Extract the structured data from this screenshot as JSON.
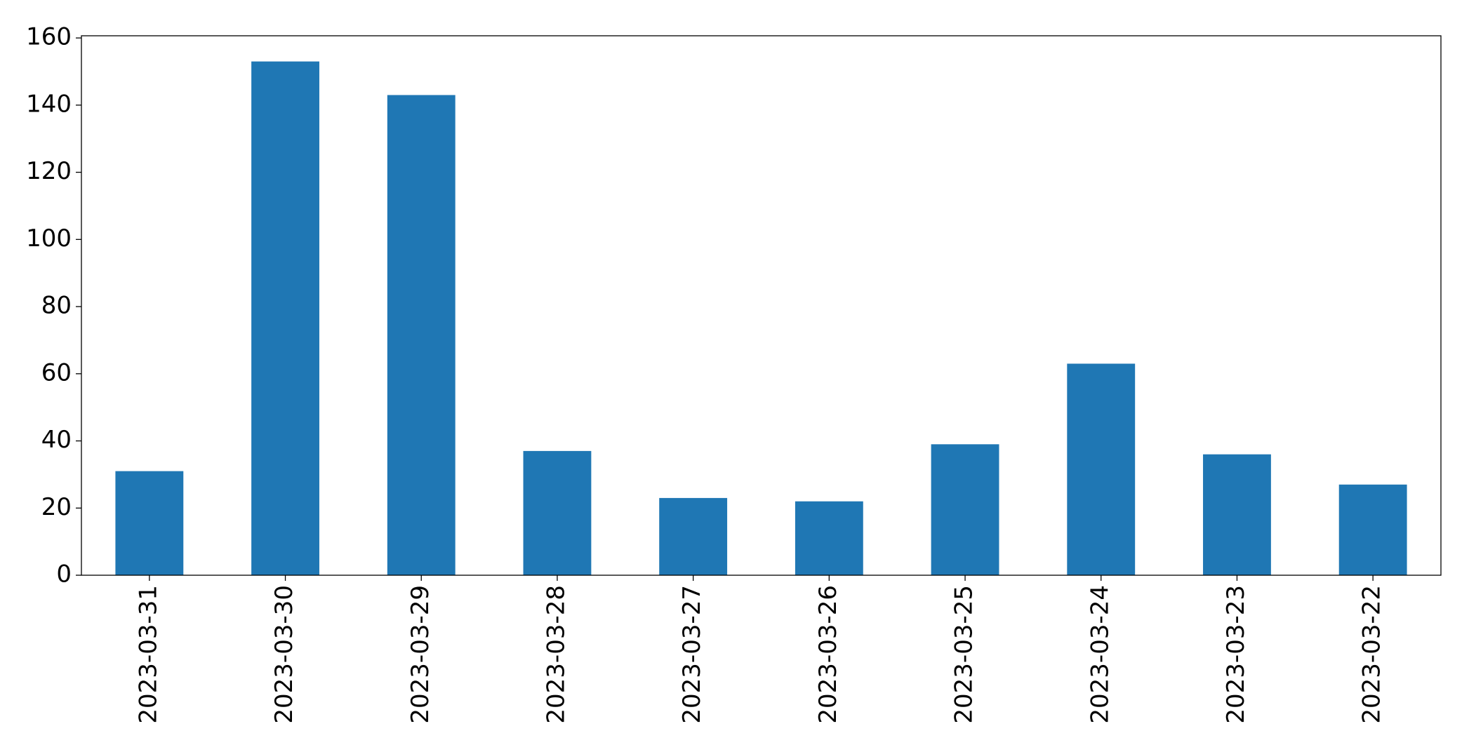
{
  "chart_data": {
    "type": "bar",
    "categories": [
      "2023-03-31",
      "2023-03-30",
      "2023-03-29",
      "2023-03-28",
      "2023-03-27",
      "2023-03-26",
      "2023-03-25",
      "2023-03-24",
      "2023-03-23",
      "2023-03-22"
    ],
    "values": [
      31,
      153,
      143,
      37,
      23,
      22,
      39,
      63,
      36,
      27
    ],
    "color": "#1f77b4",
    "ylim": [
      0,
      160.65
    ],
    "yticks": [
      0,
      20,
      40,
      60,
      80,
      100,
      120,
      140,
      160
    ],
    "grid": false
  }
}
